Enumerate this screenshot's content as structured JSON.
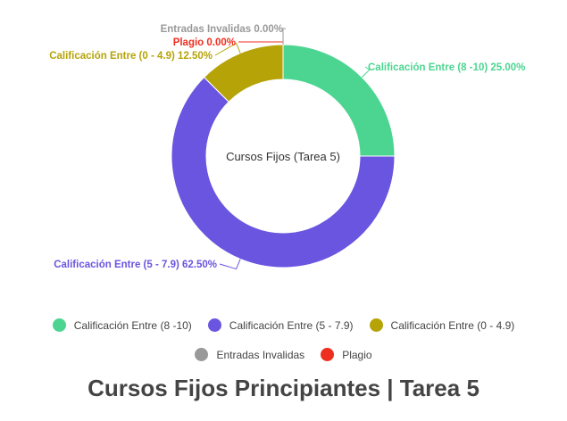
{
  "chart_data": {
    "type": "pie",
    "title": "Cursos Fijos Principiantes | Tarea 5",
    "center_label": "Cursos Fijos (Tarea 5)",
    "slices": [
      {
        "label": "Calificación Entre (8 -10)",
        "value": 25.0,
        "display": "Calificación Entre (8 -10) 25.00%",
        "color": "#4cd591"
      },
      {
        "label": "Calificación Entre (5 - 7.9)",
        "value": 62.5,
        "display": "Calificación Entre (5 - 7.9) 62.50%",
        "color": "#6a55e0"
      },
      {
        "label": "Calificación Entre (0 - 4.9)",
        "value": 12.5,
        "display": "Calificación Entre (0 - 4.9) 12.50%",
        "color": "#b5a308"
      },
      {
        "label": "Plagio",
        "value": 0.0,
        "display": "Plagio 0.00%",
        "color": "#ee2f1f"
      },
      {
        "label": "Entradas Invalidas",
        "value": 0.0,
        "display": "Entradas Invalidas 0.00%",
        "color": "#999999"
      }
    ],
    "legend_rows": [
      [
        "Calificación Entre (8 -10)",
        "Calificación Entre (5 - 7.9)",
        "Calificación Entre (0 - 4.9)"
      ],
      [
        "Entradas Invalidas",
        "Plagio"
      ]
    ],
    "legend_position": "bottom"
  }
}
